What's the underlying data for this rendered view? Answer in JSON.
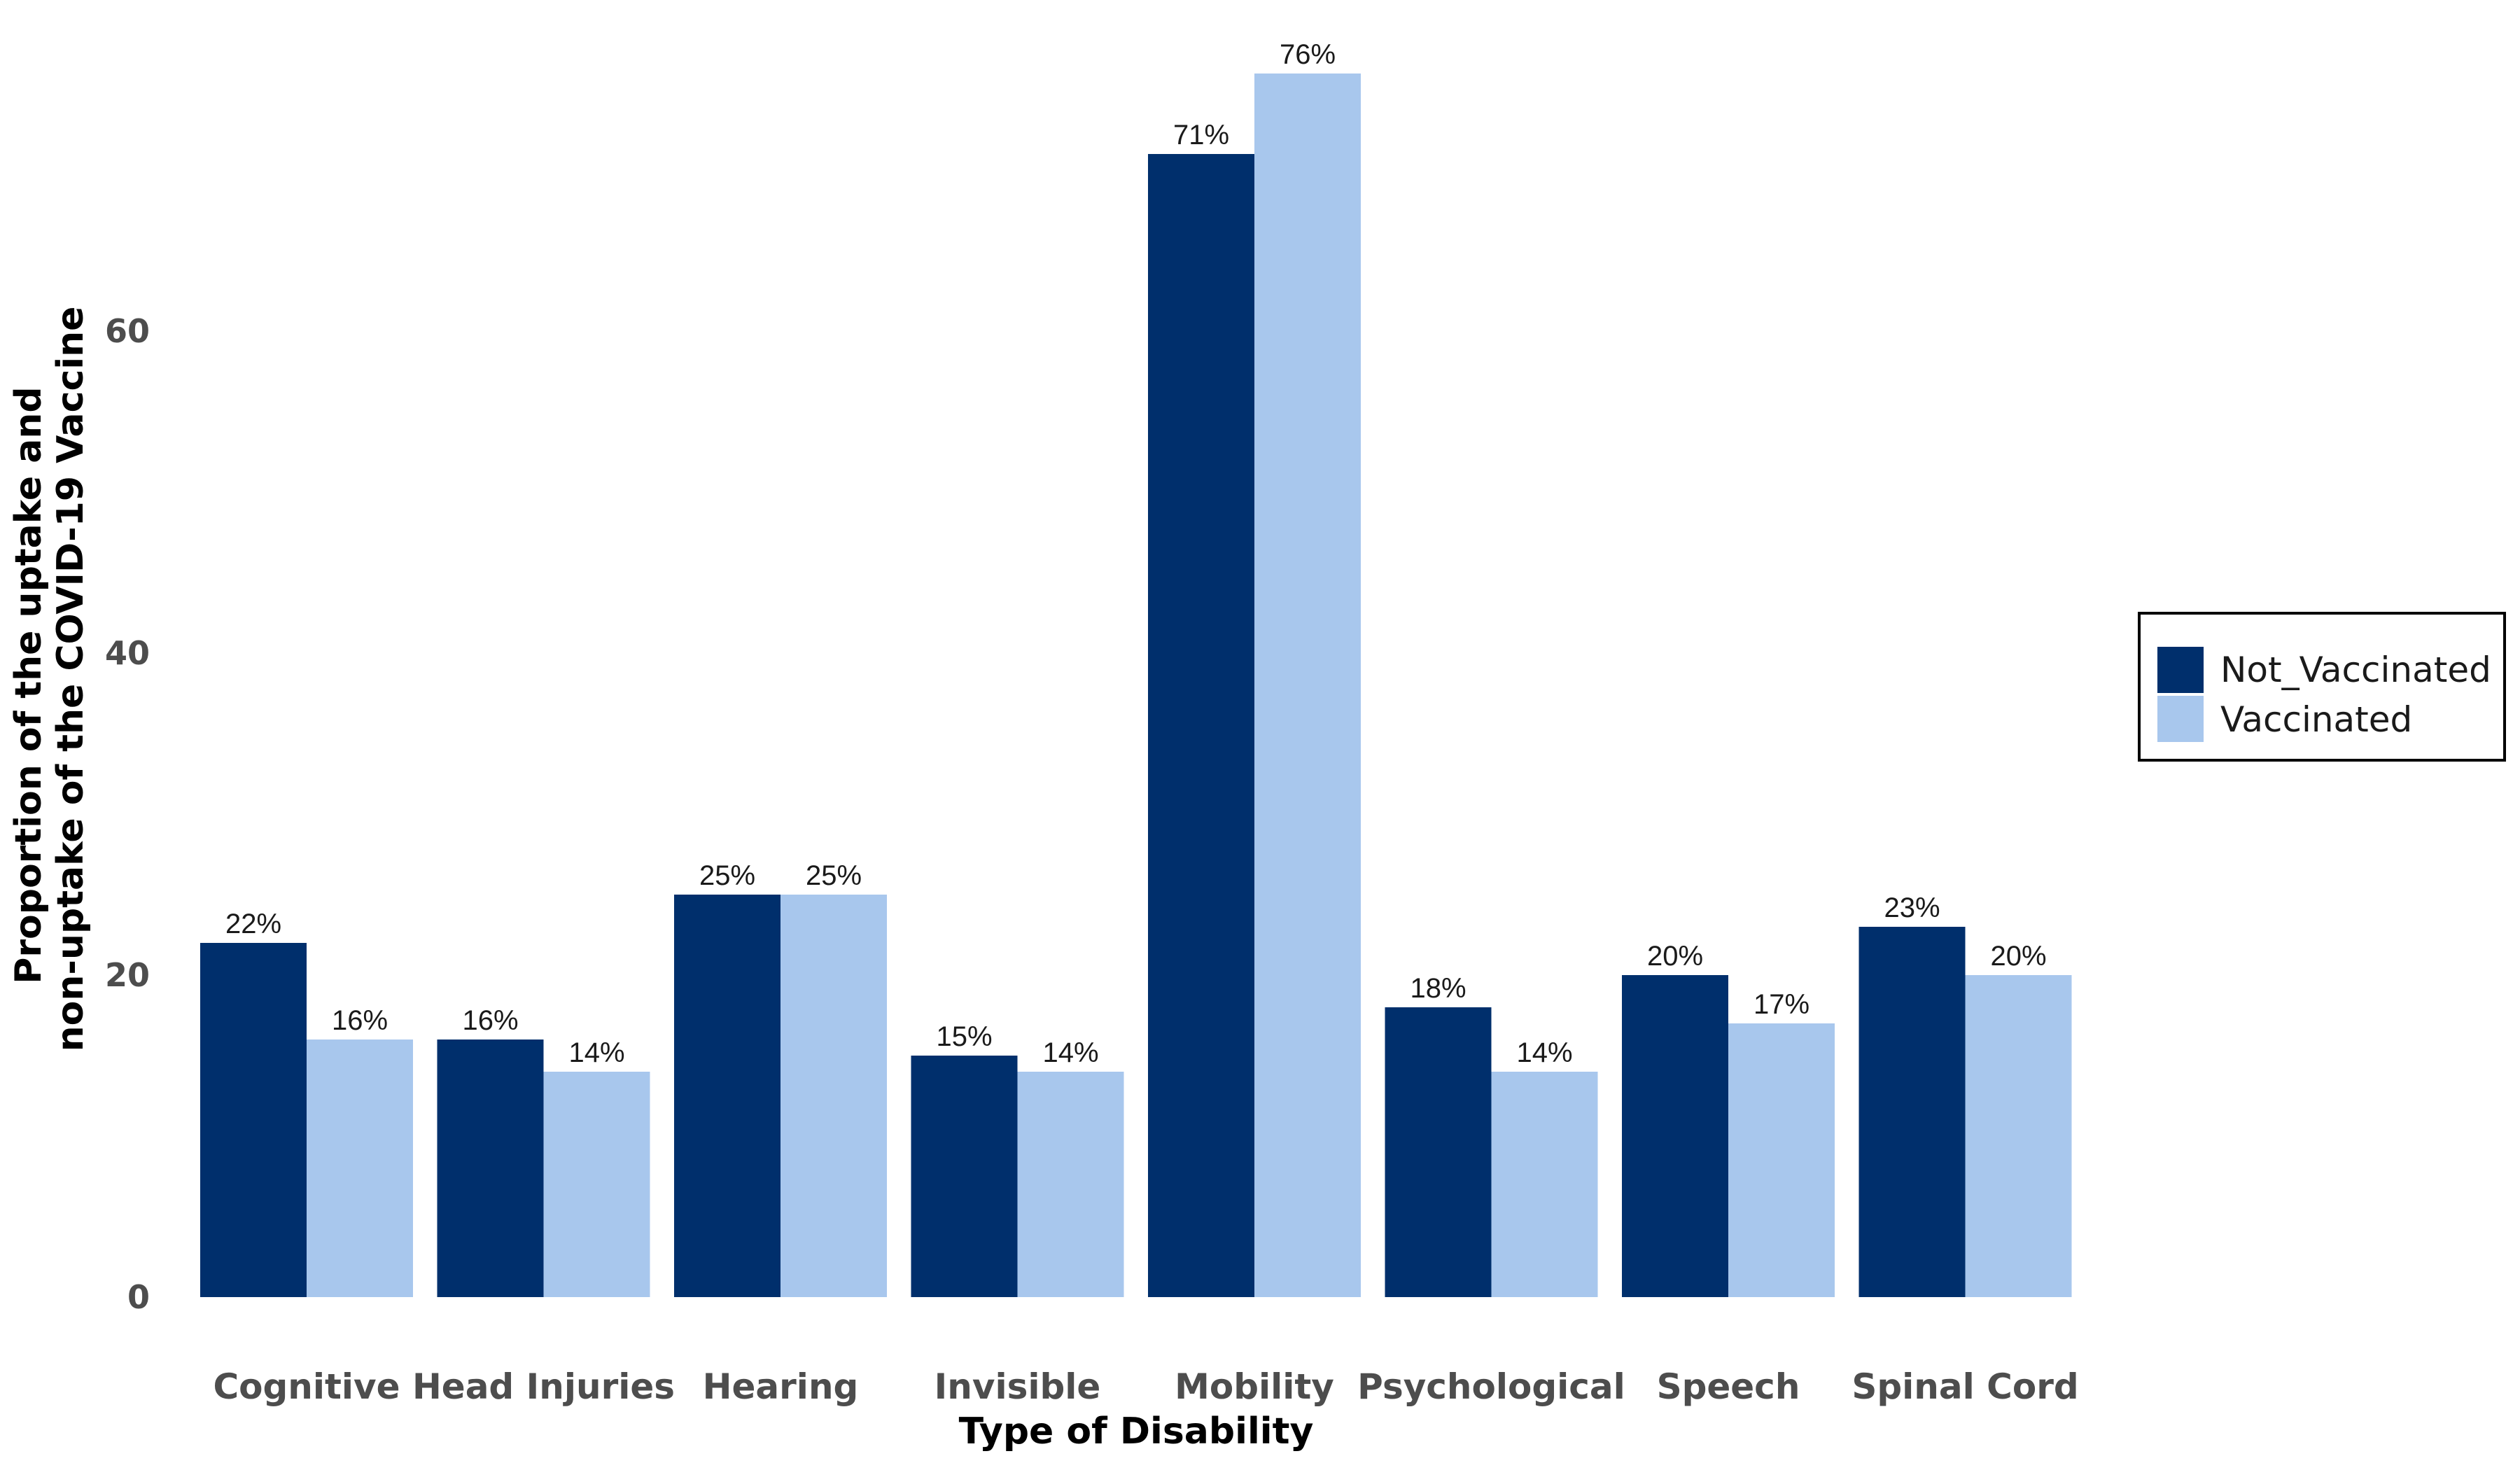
{
  "chart_data": {
    "type": "bar",
    "categories": [
      "Cognitive",
      "Head Injuries",
      "Hearing",
      "Invisible",
      "Mobility",
      "Psychological",
      "Speech",
      "Spinal Cord"
    ],
    "series": [
      {
        "name": "Not_Vaccinated",
        "color": "#002f6c",
        "values": [
          22,
          16,
          25,
          15,
          71,
          18,
          20,
          23
        ],
        "labels": [
          "22%",
          "16%",
          "25%",
          "15%",
          "71%",
          "18%",
          "20%",
          "23%"
        ]
      },
      {
        "name": "Vaccinated",
        "color": "#a8c7ed",
        "values": [
          16,
          14,
          25,
          14,
          76,
          14,
          17,
          20
        ],
        "labels": [
          "16%",
          "14%",
          "25%",
          "14%",
          "76%",
          "14%",
          "17%",
          "20%"
        ]
      }
    ],
    "xlabel": "Type of Disability",
    "ylabel_lines": [
      "Proportion of the uptake and",
      "non-uptake of the COVID-19 Vaccine"
    ],
    "yticks": [
      "0",
      "20",
      "40",
      "60"
    ],
    "ylim": [
      0,
      76
    ],
    "grid": false,
    "legend_position": "right"
  }
}
